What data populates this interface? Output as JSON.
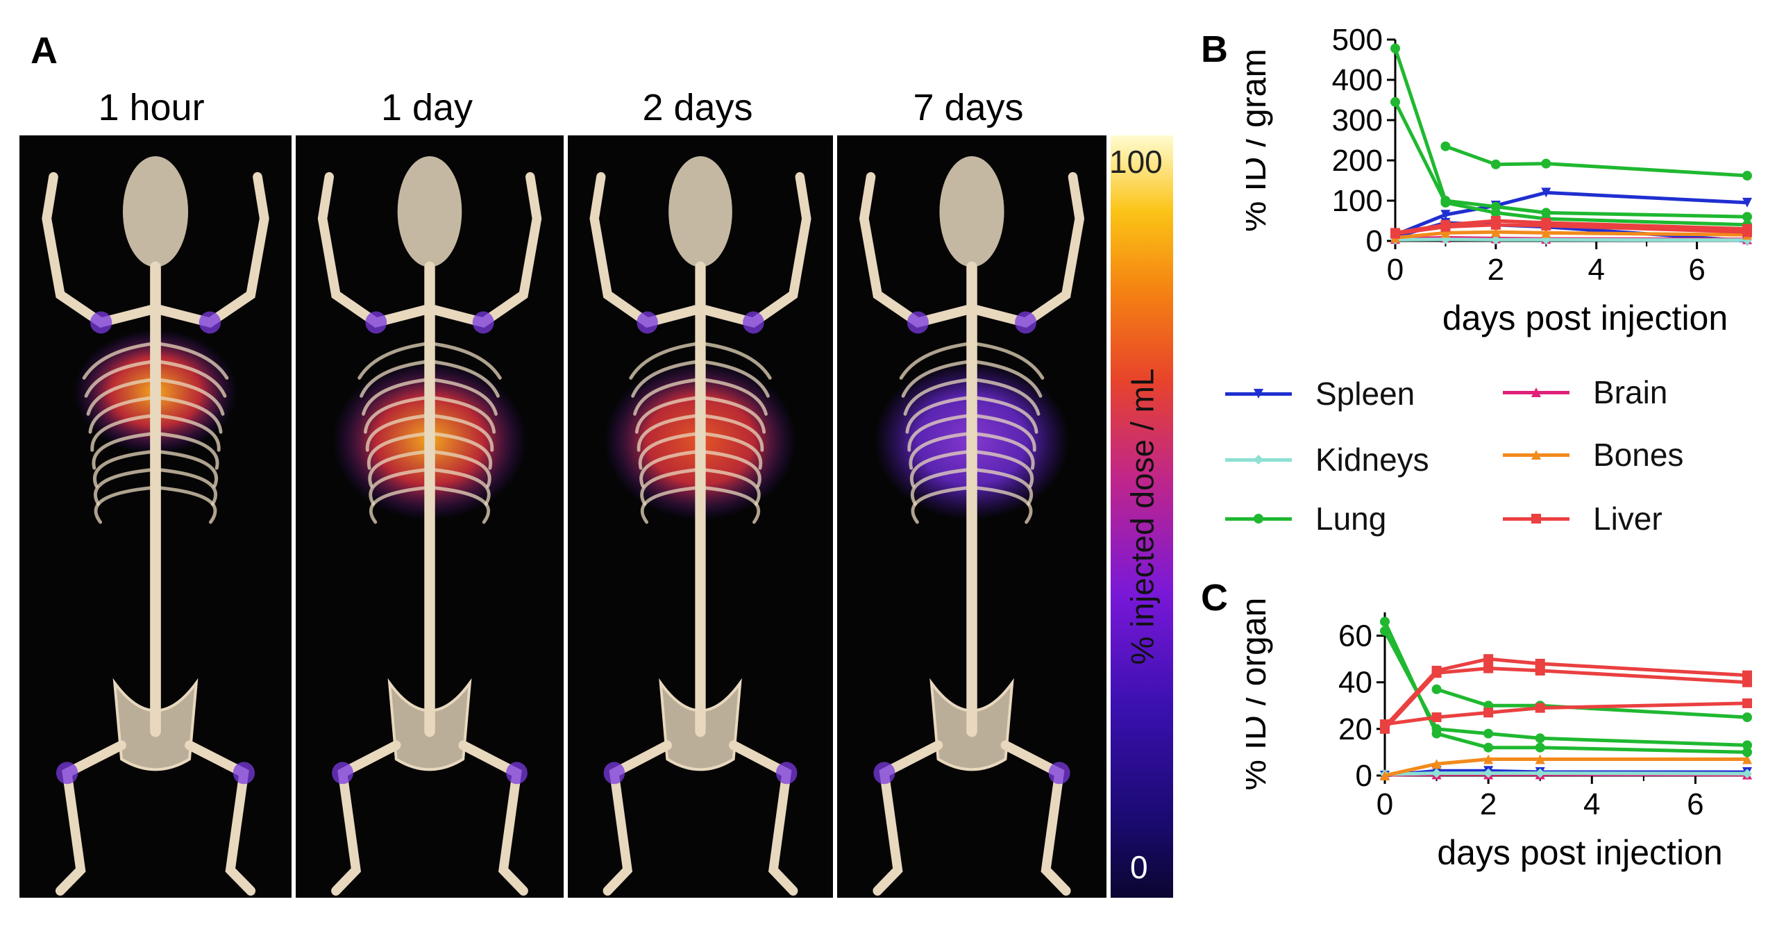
{
  "panel_a": {
    "letter": "A",
    "timepoints": [
      "1 hour",
      "1 day",
      "2 days",
      "7 days"
    ],
    "colorbar": {
      "max": "100",
      "min": "0",
      "label": "% injected dose / mL"
    },
    "lung_intensity": [
      0.95,
      0.78,
      0.65,
      0.35
    ]
  },
  "panel_b": {
    "letter": "B"
  },
  "panel_c": {
    "letter": "C"
  },
  "legend": [
    {
      "name": "Spleen",
      "color": "#1f2fd0",
      "marker": "triangle-down"
    },
    {
      "name": "Brain",
      "color": "#e0207a",
      "marker": "triangle-up"
    },
    {
      "name": "Kidneys",
      "color": "#8de0d2",
      "marker": "diamond"
    },
    {
      "name": "Bones",
      "color": "#f28a1c",
      "marker": "triangle-up"
    },
    {
      "name": "Lung",
      "color": "#1fb830",
      "marker": "circle"
    },
    {
      "name": "Liver",
      "color": "#ea4040",
      "marker": "square"
    }
  ],
  "chart_data": [
    {
      "type": "line",
      "panel": "B",
      "title": "",
      "xlabel": "days post injection",
      "ylabel": "% ID / gram",
      "xlim": [
        0,
        7
      ],
      "ylim": [
        0,
        500
      ],
      "xticks": [
        0,
        2,
        4,
        6
      ],
      "yticks": [
        0,
        100,
        200,
        300,
        400,
        500
      ],
      "series": [
        {
          "name": "Spleen",
          "color": "#1f2fd0",
          "points": [
            [
              0,
              15
            ],
            [
              1,
              65
            ],
            [
              2,
              88
            ],
            [
              3,
              120
            ],
            [
              7,
              95
            ]
          ]
        },
        {
          "name": "Spleen",
          "color": "#1f2fd0",
          "points": [
            [
              0,
              10
            ],
            [
              1,
              45
            ],
            [
              2,
              40
            ],
            [
              3,
              35
            ],
            [
              7,
              0
            ]
          ]
        },
        {
          "name": "Brain",
          "color": "#e0207a",
          "points": [
            [
              0,
              5
            ],
            [
              1,
              8
            ],
            [
              2,
              6
            ],
            [
              3,
              5
            ],
            [
              7,
              4
            ]
          ]
        },
        {
          "name": "Kidneys",
          "color": "#8de0d2",
          "points": [
            [
              0,
              3
            ],
            [
              1,
              4
            ],
            [
              2,
              3
            ],
            [
              3,
              3
            ],
            [
              7,
              2
            ]
          ]
        },
        {
          "name": "Bones",
          "color": "#f28a1c",
          "points": [
            [
              0,
              8
            ],
            [
              1,
              20
            ],
            [
              2,
              22
            ],
            [
              3,
              20
            ],
            [
              7,
              15
            ]
          ]
        },
        {
          "name": "Lung",
          "color": "#1fb830",
          "points": [
            [
              0,
              478
            ],
            [
              1,
              100
            ],
            [
              2,
              85
            ],
            [
              3,
              70
            ],
            [
              7,
              60
            ]
          ]
        },
        {
          "name": "Lung",
          "color": "#1fb830",
          "points": [
            [
              0,
              345
            ],
            [
              1,
              95
            ],
            [
              2,
              70
            ],
            [
              3,
              55
            ],
            [
              7,
              40
            ]
          ]
        },
        {
          "name": "Lung",
          "color": "#1fb830",
          "points": [
            [
              1,
              235
            ],
            [
              2,
              190
            ],
            [
              3,
              192
            ],
            [
              7,
              162
            ]
          ]
        },
        {
          "name": "Liver",
          "color": "#ea4040",
          "points": [
            [
              0,
              20
            ],
            [
              1,
              40
            ],
            [
              2,
              50
            ],
            [
              3,
              45
            ],
            [
              7,
              30
            ]
          ]
        },
        {
          "name": "Liver",
          "color": "#ea4040",
          "points": [
            [
              0,
              18
            ],
            [
              1,
              35
            ],
            [
              2,
              40
            ],
            [
              3,
              38
            ],
            [
              7,
              22
            ]
          ]
        }
      ]
    },
    {
      "type": "line",
      "panel": "C",
      "title": "",
      "xlabel": "days post injection",
      "ylabel": "% ID / organ",
      "xlim": [
        0,
        7
      ],
      "ylim": [
        0,
        70
      ],
      "xticks": [
        0,
        2,
        4,
        6
      ],
      "yticks": [
        0,
        20,
        40,
        60
      ],
      "series": [
        {
          "name": "Spleen",
          "color": "#1f2fd0",
          "points": [
            [
              0,
              0
            ],
            [
              1,
              2
            ],
            [
              2,
              2
            ],
            [
              3,
              1.5
            ],
            [
              7,
              1.5
            ]
          ]
        },
        {
          "name": "Brain",
          "color": "#e0207a",
          "points": [
            [
              0,
              0.3
            ],
            [
              1,
              0.5
            ],
            [
              2,
              0.5
            ],
            [
              3,
              0.5
            ],
            [
              7,
              0.4
            ]
          ]
        },
        {
          "name": "Kidneys",
          "color": "#8de0d2",
          "points": [
            [
              0,
              0.5
            ],
            [
              1,
              1
            ],
            [
              2,
              1
            ],
            [
              3,
              1
            ],
            [
              7,
              0.8
            ]
          ]
        },
        {
          "name": "Bones",
          "color": "#f28a1c",
          "points": [
            [
              0,
              0
            ],
            [
              1,
              5
            ],
            [
              2,
              7
            ],
            [
              3,
              7
            ],
            [
              7,
              7
            ]
          ]
        },
        {
          "name": "Lung",
          "color": "#1fb830",
          "points": [
            [
              0,
              66
            ],
            [
              1,
              18
            ],
            [
              2,
              12
            ],
            [
              3,
              12
            ],
            [
              7,
              10
            ]
          ]
        },
        {
          "name": "Lung",
          "color": "#1fb830",
          "points": [
            [
              0,
              62
            ],
            [
              1,
              20
            ],
            [
              2,
              18
            ],
            [
              3,
              16
            ],
            [
              7,
              13
            ]
          ]
        },
        {
          "name": "Lung",
          "color": "#1fb830",
          "points": [
            [
              1,
              37
            ],
            [
              2,
              30
            ],
            [
              3,
              30
            ],
            [
              7,
              25
            ]
          ]
        },
        {
          "name": "Liver",
          "color": "#ea4040",
          "points": [
            [
              0,
              21
            ],
            [
              1,
              45
            ],
            [
              2,
              50
            ],
            [
              3,
              48
            ],
            [
              7,
              43
            ]
          ]
        },
        {
          "name": "Liver",
          "color": "#ea4040",
          "points": [
            [
              0,
              20
            ],
            [
              1,
              44
            ],
            [
              2,
              46
            ],
            [
              3,
              45
            ],
            [
              7,
              40
            ]
          ]
        },
        {
          "name": "Liver",
          "color": "#ea4040",
          "points": [
            [
              0,
              22
            ],
            [
              1,
              25
            ],
            [
              2,
              27
            ],
            [
              3,
              29
            ],
            [
              7,
              31
            ]
          ]
        }
      ]
    }
  ]
}
